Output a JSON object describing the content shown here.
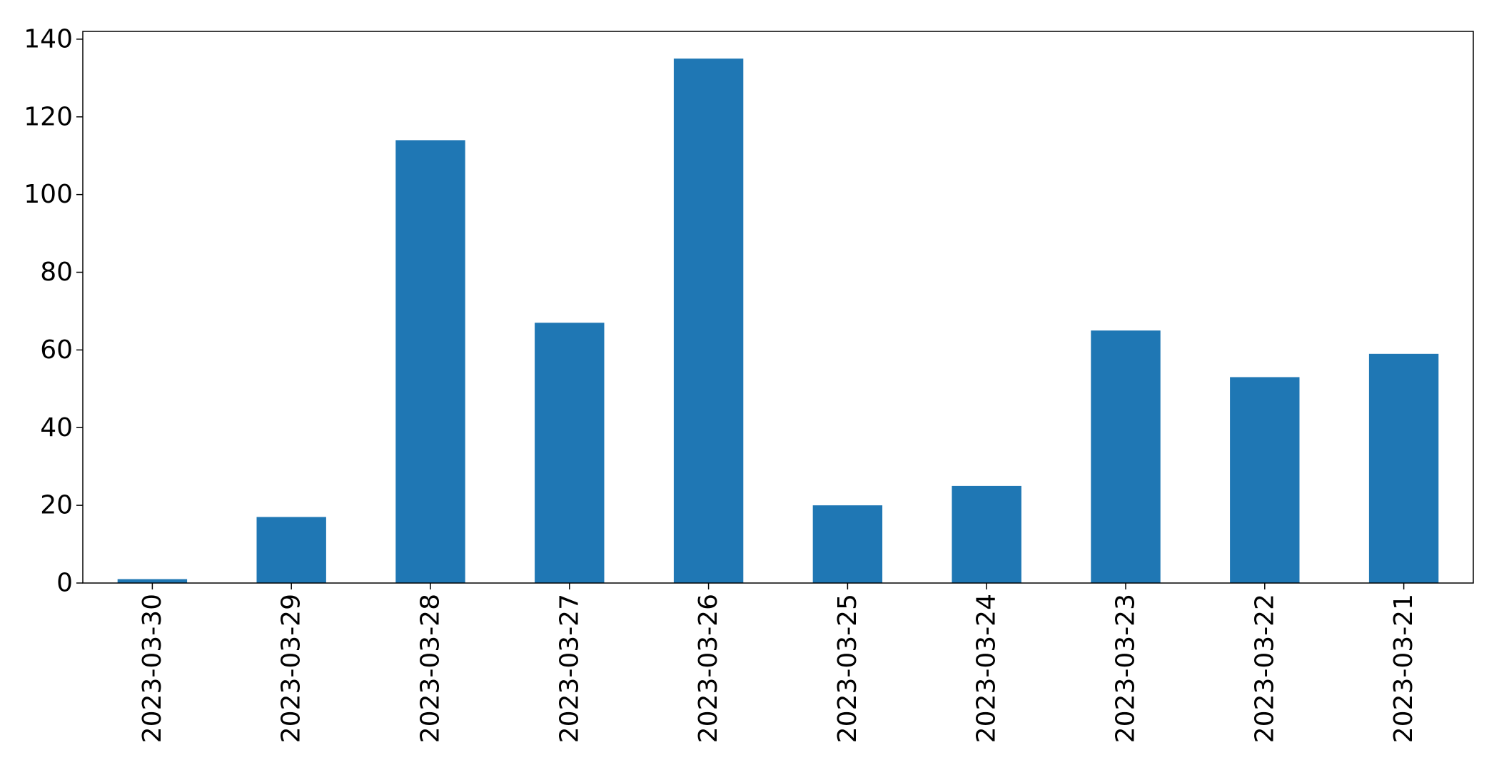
{
  "chart_data": {
    "type": "bar",
    "title": "",
    "xlabel": "",
    "ylabel": "",
    "categories": [
      "2023-03-30",
      "2023-03-29",
      "2023-03-28",
      "2023-03-27",
      "2023-03-26",
      "2023-03-25",
      "2023-03-24",
      "2023-03-23",
      "2023-03-22",
      "2023-03-21"
    ],
    "values": [
      1,
      17,
      114,
      67,
      135,
      20,
      25,
      65,
      53,
      59
    ],
    "ylim": [
      0,
      142
    ],
    "yticks": [
      0,
      20,
      40,
      60,
      80,
      100,
      120,
      140
    ],
    "ytick_labels": [
      "0",
      "20",
      "40",
      "60",
      "80",
      "100",
      "120",
      "140"
    ],
    "bar_color": "#1f77b4",
    "grid": false,
    "legend": "none"
  }
}
